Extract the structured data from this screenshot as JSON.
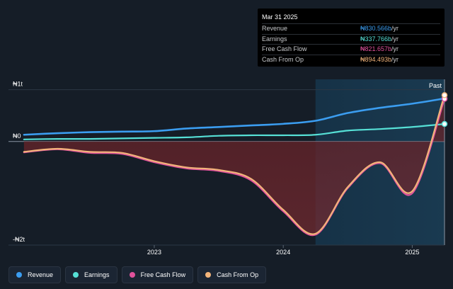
{
  "chart_data": {
    "type": "line",
    "title": "",
    "y_axis": {
      "ticks": [
        {
          "value": 1,
          "label": "₦1t"
        },
        {
          "value": 0,
          "label": "₦0"
        },
        {
          "value": -2,
          "label": "-₦2t"
        }
      ],
      "ylim": [
        -2,
        1.2
      ],
      "unit": "NGN trillions"
    },
    "x_axis": {
      "ticks": [
        {
          "value": 2023.0,
          "label": "2023"
        },
        {
          "value": 2024.0,
          "label": "2024"
        },
        {
          "value": 2025.0,
          "label": "2025"
        }
      ],
      "xlim": [
        2021.87,
        2025.25
      ]
    },
    "past_marker": {
      "label": "Past",
      "x": 2025.25
    },
    "forecast_shade_start": 2024.25,
    "series": [
      {
        "name": "Revenue",
        "key": "revenue",
        "color": "#3b9df0",
        "x": [
          2021.99,
          2022.25,
          2022.5,
          2022.75,
          2023.0,
          2023.25,
          2023.5,
          2023.75,
          2024.0,
          2024.25,
          2024.5,
          2024.75,
          2025.0,
          2025.25
        ],
        "values": [
          0.13,
          0.16,
          0.18,
          0.19,
          0.2,
          0.25,
          0.28,
          0.31,
          0.34,
          0.4,
          0.55,
          0.65,
          0.73,
          0.83
        ]
      },
      {
        "name": "Earnings",
        "key": "earnings",
        "color": "#56e0d6",
        "x": [
          2021.99,
          2022.25,
          2022.5,
          2022.75,
          2023.0,
          2023.25,
          2023.5,
          2023.75,
          2024.0,
          2024.25,
          2024.5,
          2024.75,
          2025.0,
          2025.25
        ],
        "values": [
          0.04,
          0.05,
          0.05,
          0.06,
          0.07,
          0.08,
          0.11,
          0.12,
          0.12,
          0.13,
          0.21,
          0.24,
          0.28,
          0.338
        ]
      },
      {
        "name": "Free Cash Flow",
        "key": "fcf",
        "color": "#e0529c",
        "x": [
          2021.99,
          2022.25,
          2022.5,
          2022.75,
          2023.0,
          2023.25,
          2023.5,
          2023.75,
          2024.0,
          2024.25,
          2024.5,
          2024.75,
          2025.0,
          2025.25
        ],
        "values": [
          -0.21,
          -0.15,
          -0.22,
          -0.24,
          -0.4,
          -0.52,
          -0.57,
          -0.75,
          -1.35,
          -1.8,
          -0.9,
          -0.42,
          -1.0,
          0.822
        ]
      },
      {
        "name": "Cash From Op",
        "key": "cfo",
        "color": "#f2b47a",
        "x": [
          2021.99,
          2022.25,
          2022.5,
          2022.75,
          2023.0,
          2023.25,
          2023.5,
          2023.75,
          2024.0,
          2024.25,
          2024.5,
          2024.75,
          2025.0,
          2025.25
        ],
        "values": [
          -0.2,
          -0.14,
          -0.2,
          -0.22,
          -0.38,
          -0.5,
          -0.55,
          -0.72,
          -1.32,
          -1.78,
          -0.88,
          -0.4,
          -0.96,
          0.894
        ]
      }
    ]
  },
  "tooltip": {
    "date": "Mar 31 2025",
    "rows": [
      {
        "label": "Revenue",
        "value": "₦830.566b",
        "unit": " /yr",
        "color": "#3b9df0"
      },
      {
        "label": "Earnings",
        "value": "₦337.766b",
        "unit": " /yr",
        "color": "#56e0d6"
      },
      {
        "label": "Free Cash Flow",
        "value": "₦821.657b",
        "unit": " /yr",
        "color": "#e0529c"
      },
      {
        "label": "Cash From Op",
        "value": "₦894.493b",
        "unit": " /yr",
        "color": "#f2b47a"
      }
    ]
  },
  "legend": [
    {
      "label": "Revenue",
      "color": "#3b9df0"
    },
    {
      "label": "Earnings",
      "color": "#56e0d6"
    },
    {
      "label": "Free Cash Flow",
      "color": "#e0529c"
    },
    {
      "label": "Cash From Op",
      "color": "#f2b47a"
    }
  ]
}
